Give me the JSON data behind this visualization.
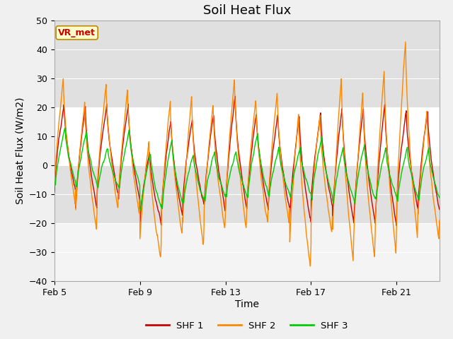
{
  "title": "Soil Heat Flux",
  "xlabel": "Time",
  "ylabel": "Soil Heat Flux (W/m2)",
  "ylim": [
    -40,
    50
  ],
  "yticks": [
    -40,
    -30,
    -20,
    -10,
    0,
    10,
    20,
    30,
    40,
    50
  ],
  "xtick_labels": [
    "Feb 5",
    "Feb 9",
    "Feb 13",
    "Feb 17",
    "Feb 21"
  ],
  "xtick_positions": [
    0,
    4,
    8,
    12,
    16
  ],
  "color_shf1": "#cc0000",
  "color_shf2": "#ff8800",
  "color_shf3": "#00cc00",
  "legend_labels": [
    "SHF 1",
    "SHF 2",
    "SHF 3"
  ],
  "annotation_text": "VR_met",
  "annotation_color": "#cc0000",
  "annotation_bg": "#ffffcc",
  "annotation_border": "#bb8800",
  "bg_band_color": "#e0e0e0",
  "fig_facecolor": "#f0f0f0",
  "axes_facecolor": "#ffffff",
  "title_fontsize": 13,
  "axis_label_fontsize": 10,
  "tick_fontsize": 9,
  "n_days": 18,
  "xlim": [
    0,
    18
  ]
}
